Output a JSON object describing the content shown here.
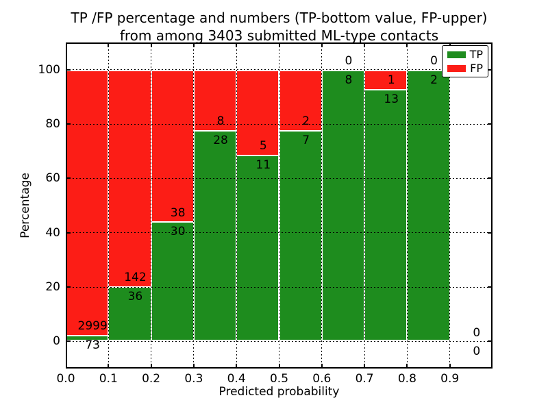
{
  "chart_data": {
    "type": "bar",
    "stacked": true,
    "title_line1": "TP /FP percentage and numbers (TP-bottom value, FP-upper)",
    "title_line2": "from among 3403 submitted ML-type contacts",
    "xlabel": "Predicted probability",
    "ylabel": "Percentage",
    "xlim": [
      0.0,
      1.0
    ],
    "ylim": [
      -10,
      110
    ],
    "x_ticks": [
      0.0,
      0.1,
      0.2,
      0.3,
      0.4,
      0.5,
      0.6,
      0.7,
      0.8,
      0.9
    ],
    "x_tick_labels": [
      "0.0",
      "0.1",
      "0.2",
      "0.3",
      "0.4",
      "0.5",
      "0.6",
      "0.7",
      "0.8",
      "0.9"
    ],
    "y_ticks": [
      0,
      20,
      40,
      60,
      80,
      100
    ],
    "y_tick_labels": [
      "0",
      "20",
      "40",
      "60",
      "80",
      "100"
    ],
    "grid": true,
    "legend_position": "upper right",
    "colors": {
      "tp": "#1e8c1e",
      "fp": "#fc1d16"
    },
    "legend": [
      {
        "label": "TP",
        "color_key": "tp"
      },
      {
        "label": "FP",
        "color_key": "fp"
      }
    ],
    "bins": [
      {
        "range": [
          0.0,
          0.1
        ],
        "tp": 73,
        "fp": 2999,
        "tp_pct": 2.38
      },
      {
        "range": [
          0.1,
          0.2
        ],
        "tp": 36,
        "fp": 142,
        "tp_pct": 20.22
      },
      {
        "range": [
          0.2,
          0.3
        ],
        "tp": 30,
        "fp": 38,
        "tp_pct": 44.12
      },
      {
        "range": [
          0.3,
          0.4
        ],
        "tp": 28,
        "fp": 8,
        "tp_pct": 77.78
      },
      {
        "range": [
          0.4,
          0.5
        ],
        "tp": 11,
        "fp": 5,
        "tp_pct": 68.75
      },
      {
        "range": [
          0.5,
          0.6
        ],
        "tp": 7,
        "fp": 2,
        "tp_pct": 77.78
      },
      {
        "range": [
          0.6,
          0.7
        ],
        "tp": 8,
        "fp": 0,
        "tp_pct": 100
      },
      {
        "range": [
          0.7,
          0.8
        ],
        "tp": 13,
        "fp": 1,
        "tp_pct": 92.86
      },
      {
        "range": [
          0.8,
          0.9
        ],
        "tp": 2,
        "fp": 0,
        "tp_pct": 100
      },
      {
        "range": [
          0.9,
          1.0
        ],
        "tp": 0,
        "fp": 0,
        "tp_pct": null
      }
    ]
  }
}
